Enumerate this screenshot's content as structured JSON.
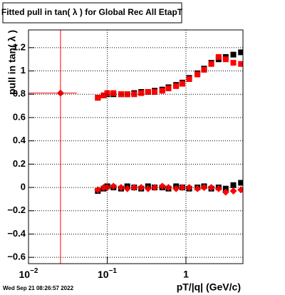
{
  "chart_data": {
    "type": "scatter",
    "title": "Fitted pull in tan( λ ) for Global Rec All EtapT",
    "x_label": "pT/|q| (GeV/c)",
    "y_label": "pull in tan( λ )",
    "footer": "Wed Sep 21 08:26:57 2022",
    "log_x": true,
    "grid": true,
    "xlim": [
      0.01,
      5.3
    ],
    "ylim": [
      -0.654,
      1.352
    ],
    "xticks": [
      {
        "value": 0.01,
        "label": "10",
        "exponent": "−2"
      },
      {
        "value": 0.1,
        "label": "10",
        "exponent": "−1"
      },
      1
    ],
    "yticks": [
      {
        "value": -0.6,
        "label": "−0.6"
      },
      {
        "value": -0.4,
        "label": "−0.4"
      },
      {
        "value": -0.2,
        "label": "−0.2"
      },
      0,
      0.2,
      0.4,
      0.6,
      0.8,
      1,
      1.2
    ],
    "series": [
      {
        "color": "#000000",
        "marker": "square",
        "x": [
          0.076,
          0.09,
          0.1,
          0.12,
          0.15,
          0.18,
          0.22,
          0.27,
          0.33,
          0.4,
          0.5,
          0.6,
          0.75,
          0.9,
          1.1,
          1.4,
          1.7,
          2.1,
          2.6,
          3.2,
          4,
          5
        ],
        "values": [
          0.77,
          0.79,
          0.8,
          0.8,
          0.8,
          0.8,
          0.81,
          0.82,
          0.82,
          0.83,
          0.84,
          0.86,
          0.88,
          0.9,
          0.94,
          0.98,
          1.02,
          1.07,
          1.1,
          1.12,
          1.14,
          1.16
        ]
      },
      {
        "color": "#ff0000",
        "marker": "square",
        "x": [
          0.076,
          0.09,
          0.1,
          0.12,
          0.15,
          0.18,
          0.22,
          0.27,
          0.33,
          0.4,
          0.5,
          0.6,
          0.75,
          0.9,
          1.1,
          1.4,
          1.7,
          2.1,
          2.6,
          3.2,
          4,
          5
        ],
        "values": [
          0.77,
          0.79,
          0.81,
          0.81,
          0.8,
          0.8,
          0.8,
          0.81,
          0.82,
          0.82,
          0.83,
          0.85,
          0.87,
          0.89,
          0.93,
          0.97,
          1.01,
          1.06,
          1.12,
          1.1,
          1.07,
          1.06
        ]
      },
      {
        "color": "#000000",
        "marker": "square",
        "x": [
          0.076,
          0.09,
          0.1,
          0.12,
          0.15,
          0.18,
          0.22,
          0.27,
          0.33,
          0.4,
          0.5,
          0.6,
          0.75,
          0.9,
          1.1,
          1.4,
          1.7,
          2.1,
          2.6,
          3.2,
          4,
          5
        ],
        "values": [
          -0.03,
          -0.01,
          0.01,
          0.0,
          -0.01,
          0.01,
          0.0,
          -0.01,
          0.01,
          0.0,
          0.0,
          -0.01,
          0.01,
          0.0,
          -0.01,
          0.0,
          0.01,
          -0.01,
          0.0,
          -0.01,
          0.02,
          0.04
        ]
      },
      {
        "color": "#ff0000",
        "marker": "diamond",
        "x": [
          0.076,
          0.09,
          0.1,
          0.12,
          0.15,
          0.18,
          0.22,
          0.27,
          0.33,
          0.4,
          0.5,
          0.6,
          0.75,
          0.9,
          1.1,
          1.4,
          1.7,
          2.1,
          2.6,
          3.2,
          4,
          5
        ],
        "values": [
          -0.02,
          0.0,
          0.0,
          0.01,
          0.0,
          -0.01,
          0.0,
          0.0,
          -0.01,
          0.0,
          0.01,
          0.0,
          -0.01,
          0.0,
          0.0,
          -0.01,
          0.0,
          0.0,
          -0.01,
          -0.04,
          -0.03,
          -0.02
        ]
      },
      {
        "color": "#ff0000",
        "marker": "diamond",
        "x": [
          0.0255
        ],
        "values": [
          0.81
        ],
        "yerr": [
          1.6
        ],
        "xerr": [
          0.0155
        ]
      }
    ]
  }
}
